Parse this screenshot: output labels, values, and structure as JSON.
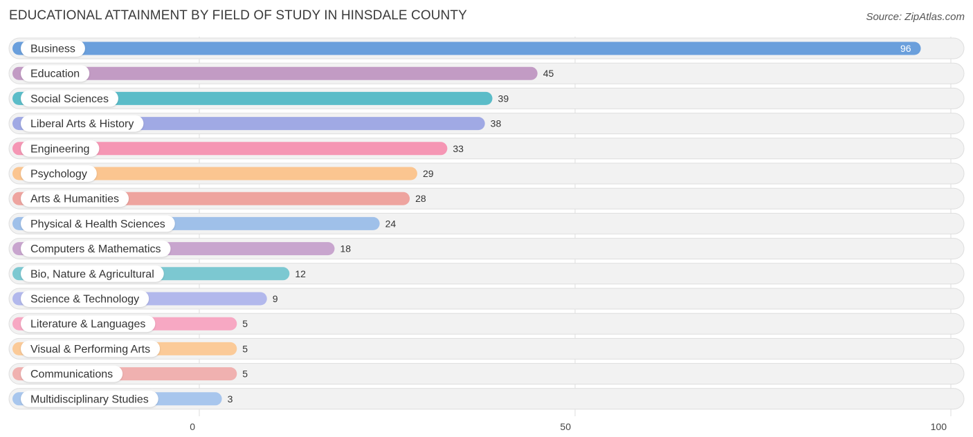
{
  "header": {
    "title": "EDUCATIONAL ATTAINMENT BY FIELD OF STUDY IN HINSDALE COUNTY",
    "source": "Source: ZipAtlas.com"
  },
  "chart_data": {
    "type": "bar",
    "orientation": "horizontal",
    "title": "EDUCATIONAL ATTAINMENT BY FIELD OF STUDY IN HINSDALE COUNTY",
    "xlabel": "",
    "ylabel": "",
    "xlim": [
      0,
      100
    ],
    "xticks": [
      "0",
      "50",
      "100"
    ],
    "grid": true,
    "categories": [
      "Business",
      "Education",
      "Social Sciences",
      "Liberal Arts & History",
      "Engineering",
      "Psychology",
      "Arts & Humanities",
      "Physical & Health Sciences",
      "Computers & Mathematics",
      "Bio, Nature & Agricultural",
      "Science & Technology",
      "Literature & Languages",
      "Visual & Performing Arts",
      "Communications",
      "Multidisciplinary Studies"
    ],
    "values": [
      96,
      45,
      39,
      38,
      33,
      29,
      28,
      24,
      18,
      12,
      9,
      5,
      5,
      5,
      3
    ],
    "value_labels": [
      "96",
      "45",
      "39",
      "38",
      "33",
      "29",
      "28",
      "24",
      "18",
      "12",
      "9",
      "5",
      "5",
      "5",
      "3"
    ],
    "colors": [
      "#6a9fdc",
      "#c29bc4",
      "#5bbcc8",
      "#a0a9e4",
      "#f596b4",
      "#fbc590",
      "#eea49f",
      "#9fc0e9",
      "#c8a5ce",
      "#7cc8d1",
      "#b2b8ec",
      "#f7a8c3",
      "#fbca98",
      "#f0b1b0",
      "#a8c6ed"
    ]
  }
}
